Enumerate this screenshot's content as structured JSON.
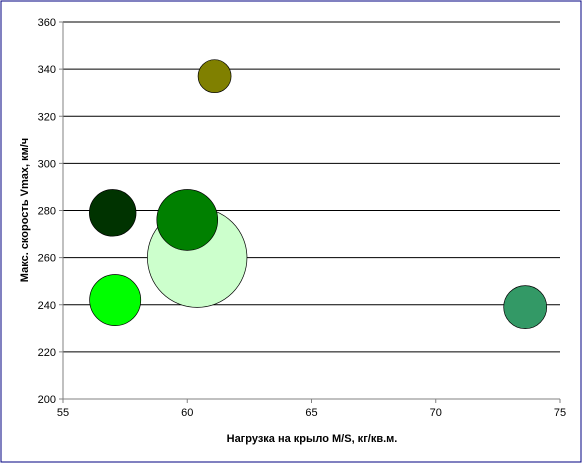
{
  "colors": {
    "background": "#ffffff",
    "border": "#000080",
    "gridline": "#000000",
    "bubble_outline": "#000000"
  },
  "chart_data": {
    "type": "scatter",
    "subtype": "bubble",
    "xlabel": "Нагрузка на крыло M/S, кг/кв.м.",
    "ylabel": "Макс. скорость Vmax, км/ч",
    "xlim": [
      55,
      75
    ],
    "ylim": [
      200,
      360
    ],
    "x_ticks": [
      55,
      60,
      65,
      70,
      75
    ],
    "y_ticks": [
      200,
      220,
      240,
      260,
      280,
      300,
      320,
      340,
      360
    ],
    "grid": {
      "horizontal": true,
      "vertical": false
    },
    "legend": "none",
    "points": [
      {
        "x": 60.4,
        "y": 260,
        "size": 9.1,
        "color": "#ccffcc"
      },
      {
        "x": 61.1,
        "y": 337,
        "size": 1.0,
        "color": "#808000"
      },
      {
        "x": 57.0,
        "y": 279,
        "size": 2.0,
        "color": "#003300"
      },
      {
        "x": 60.0,
        "y": 276,
        "size": 3.4,
        "color": "#008000"
      },
      {
        "x": 57.1,
        "y": 242,
        "size": 2.4,
        "color": "#00ff00"
      },
      {
        "x": 73.6,
        "y": 239,
        "size": 1.7,
        "color": "#339966"
      }
    ]
  }
}
